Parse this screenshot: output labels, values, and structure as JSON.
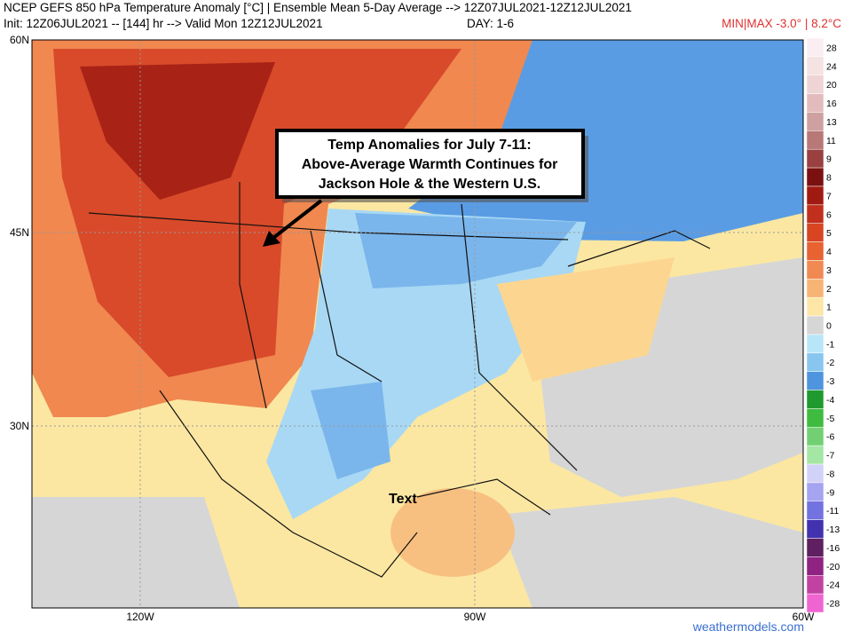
{
  "header": {
    "title": "NCEP GEFS 850 hPa Temperature Anomaly [°C] | Ensemble Mean 5-Day Average --> 12Z07JUL2021-12Z12JUL2021",
    "init": "Init: 12Z06JUL2021 -- [144] hr --> Valid Mon 12Z12JUL2021",
    "day": "DAY: 1-6",
    "minmax": "MIN|MAX -3.0° | 8.2°C"
  },
  "map": {
    "lat_labels": [
      "60N",
      "45N",
      "30N"
    ],
    "lon_labels": [
      "120W",
      "90W",
      "60W"
    ],
    "callout": [
      "Temp Anomalies for July 7-11:",
      "Above-Average Warmth Continues for",
      "Jackson Hole & the Western U.S."
    ],
    "marker_text": "Text",
    "watermark": "weathermodels.com"
  },
  "colorbar": [
    {
      "label": "28",
      "color": "#fbeef2"
    },
    {
      "label": "24",
      "color": "#f5e2e2"
    },
    {
      "label": "20",
      "color": "#eed4d4"
    },
    {
      "label": "16",
      "color": "#e2bcbc"
    },
    {
      "label": "13",
      "color": "#cfa0a0"
    },
    {
      "label": "11",
      "color": "#b87878"
    },
    {
      "label": "9",
      "color": "#9a4040"
    },
    {
      "label": "8",
      "color": "#7a1010"
    },
    {
      "label": "7",
      "color": "#a01a12"
    },
    {
      "label": "6",
      "color": "#c0301c"
    },
    {
      "label": "5",
      "color": "#d84522"
    },
    {
      "label": "4",
      "color": "#e86232"
    },
    {
      "label": "3",
      "color": "#f08a52"
    },
    {
      "label": "2",
      "color": "#f8b474"
    },
    {
      "label": "1",
      "color": "#fde6a6"
    },
    {
      "label": "0",
      "color": "#d6d6d6"
    },
    {
      "label": "-1",
      "color": "#b8e6f8"
    },
    {
      "label": "-2",
      "color": "#88c6f0"
    },
    {
      "label": "-3",
      "color": "#4f94de"
    },
    {
      "label": "-4",
      "color": "#1f9a2e"
    },
    {
      "label": "-5",
      "color": "#3fbc40"
    },
    {
      "label": "-6",
      "color": "#72d072"
    },
    {
      "label": "-7",
      "color": "#a4e6a4"
    },
    {
      "label": "-8",
      "color": "#d2d2f8"
    },
    {
      "label": "-9",
      "color": "#a4a4f0"
    },
    {
      "label": "-11",
      "color": "#7272e0"
    },
    {
      "label": "-13",
      "color": "#4232b0"
    },
    {
      "label": "-16",
      "color": "#5e2060"
    },
    {
      "label": "-20",
      "color": "#902282"
    },
    {
      "label": "-24",
      "color": "#c242a2"
    },
    {
      "label": "-28",
      "color": "#f064d2"
    }
  ]
}
